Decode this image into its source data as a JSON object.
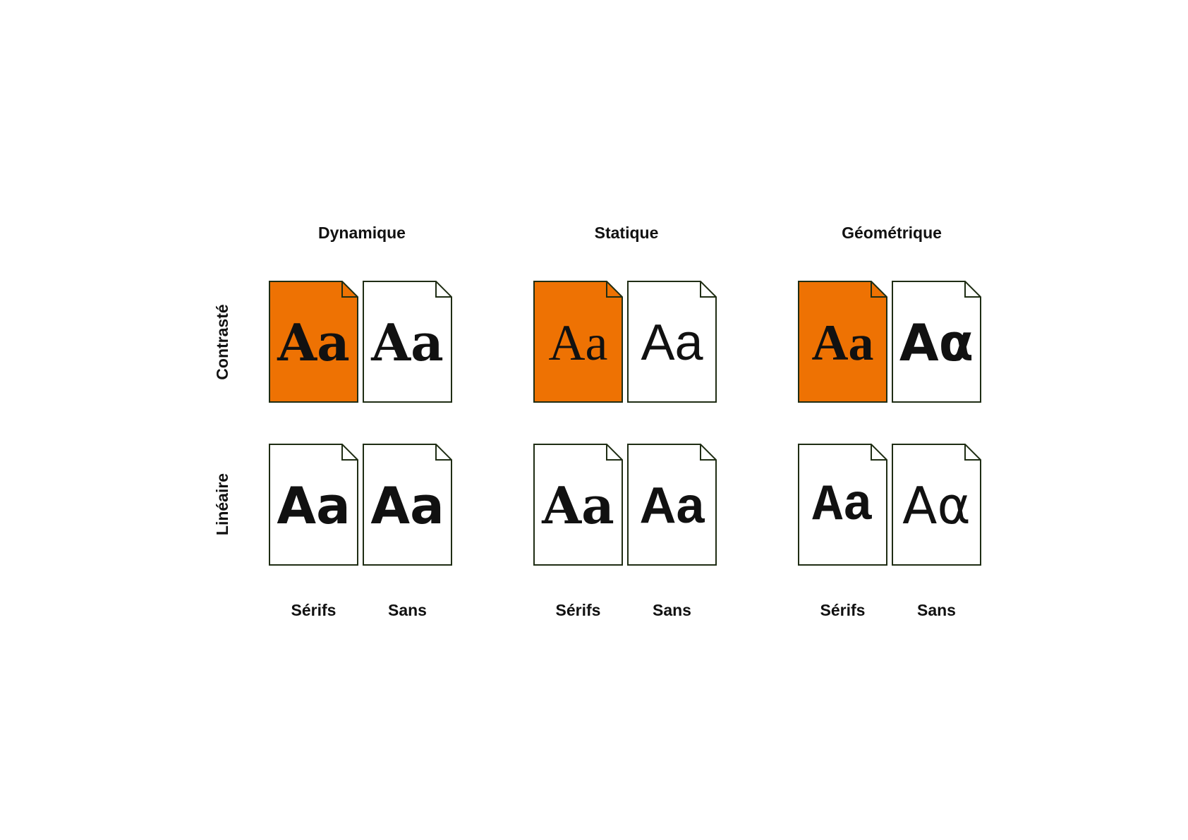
{
  "columns": [
    {
      "title": "Dynamique",
      "serif_label": "Sérifs",
      "sans_label": "Sans"
    },
    {
      "title": "Statique",
      "serif_label": "Sérifs",
      "sans_label": "Sans"
    },
    {
      "title": "Géométrique",
      "serif_label": "Sérifs",
      "sans_label": "Sans"
    }
  ],
  "rows": [
    {
      "label": "Contrasté"
    },
    {
      "label": "Linéaire"
    }
  ],
  "cells": [
    [
      {
        "sample": "Aa",
        "highlighted": true
      },
      {
        "sample": "Aa",
        "highlighted": false
      },
      {
        "sample": "Aa",
        "highlighted": true
      },
      {
        "sample": "Aa",
        "highlighted": false
      },
      {
        "sample": "Aa",
        "highlighted": true
      },
      {
        "sample": "Aα",
        "highlighted": false
      }
    ],
    [
      {
        "sample": "Aa",
        "highlighted": false
      },
      {
        "sample": "Aa",
        "highlighted": false
      },
      {
        "sample": "Aa",
        "highlighted": false
      },
      {
        "sample": "Aa",
        "highlighted": false
      },
      {
        "sample": "Aa",
        "highlighted": false
      },
      {
        "sample": "Aα",
        "highlighted": false
      }
    ]
  ],
  "colors": {
    "highlight": "#ee7203",
    "plain": "#ffffff",
    "outline": "#1f2d14"
  }
}
